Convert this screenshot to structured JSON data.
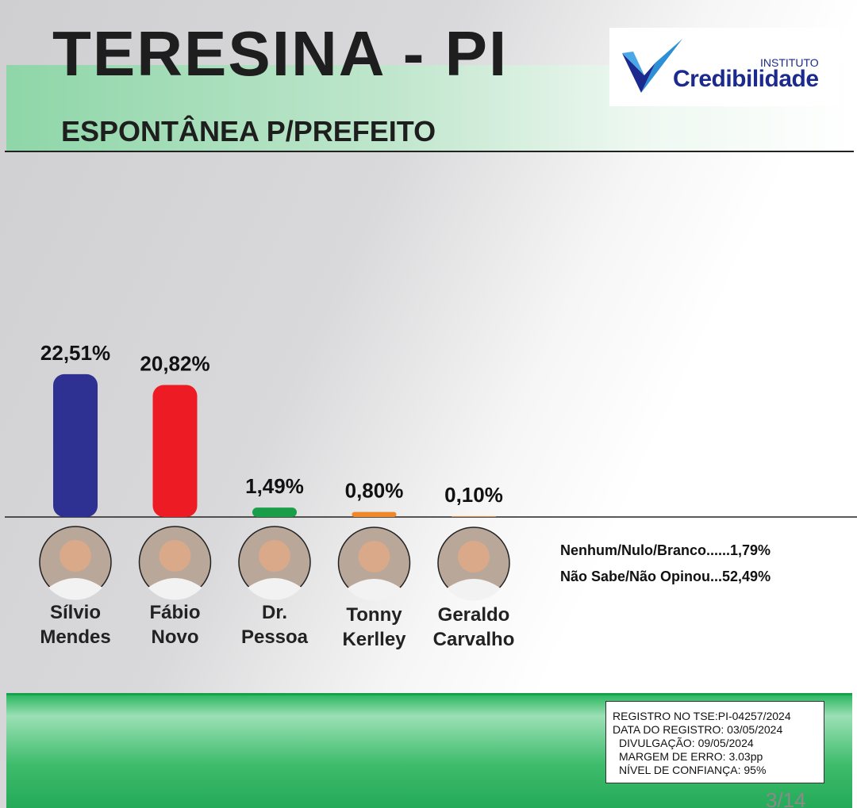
{
  "chart_data": {
    "type": "bar",
    "title": "TERESINA - PI",
    "subtitle": "ESPONTÂNEA P/PREFEITO",
    "categories": [
      "Sílvio Mendes",
      "Fábio Novo",
      "Dr. Pessoa",
      "Tonny Kerlley",
      "Geraldo Carvalho"
    ],
    "values": [
      22.51,
      20.82,
      1.49,
      0.8,
      0.1
    ],
    "value_labels": [
      "22,51%",
      "20,82%",
      "1,49%",
      "0,80%",
      "0,10%"
    ],
    "colors": [
      "#2e3192",
      "#ed1c24",
      "#1a9e4a",
      "#f0882a",
      "#f0882a"
    ],
    "notes": [
      "Nenhum/Nulo/Branco......1,79%",
      "Não Sabe/Não Opinou...52,49%"
    ],
    "brand": {
      "small": "INSTITUTO",
      "name": "Credibilidade"
    },
    "registry": [
      "REGISTRO NO TSE:PI-04257/2024",
      "DATA DO REGISTRO: 03/05/2024",
      "DIVULGAÇÃO: 09/05/2024",
      "MARGEM DE ERRO: 3.03pp",
      "NÍVEL DE CONFIANÇA: 95%"
    ],
    "page": "3/14"
  }
}
